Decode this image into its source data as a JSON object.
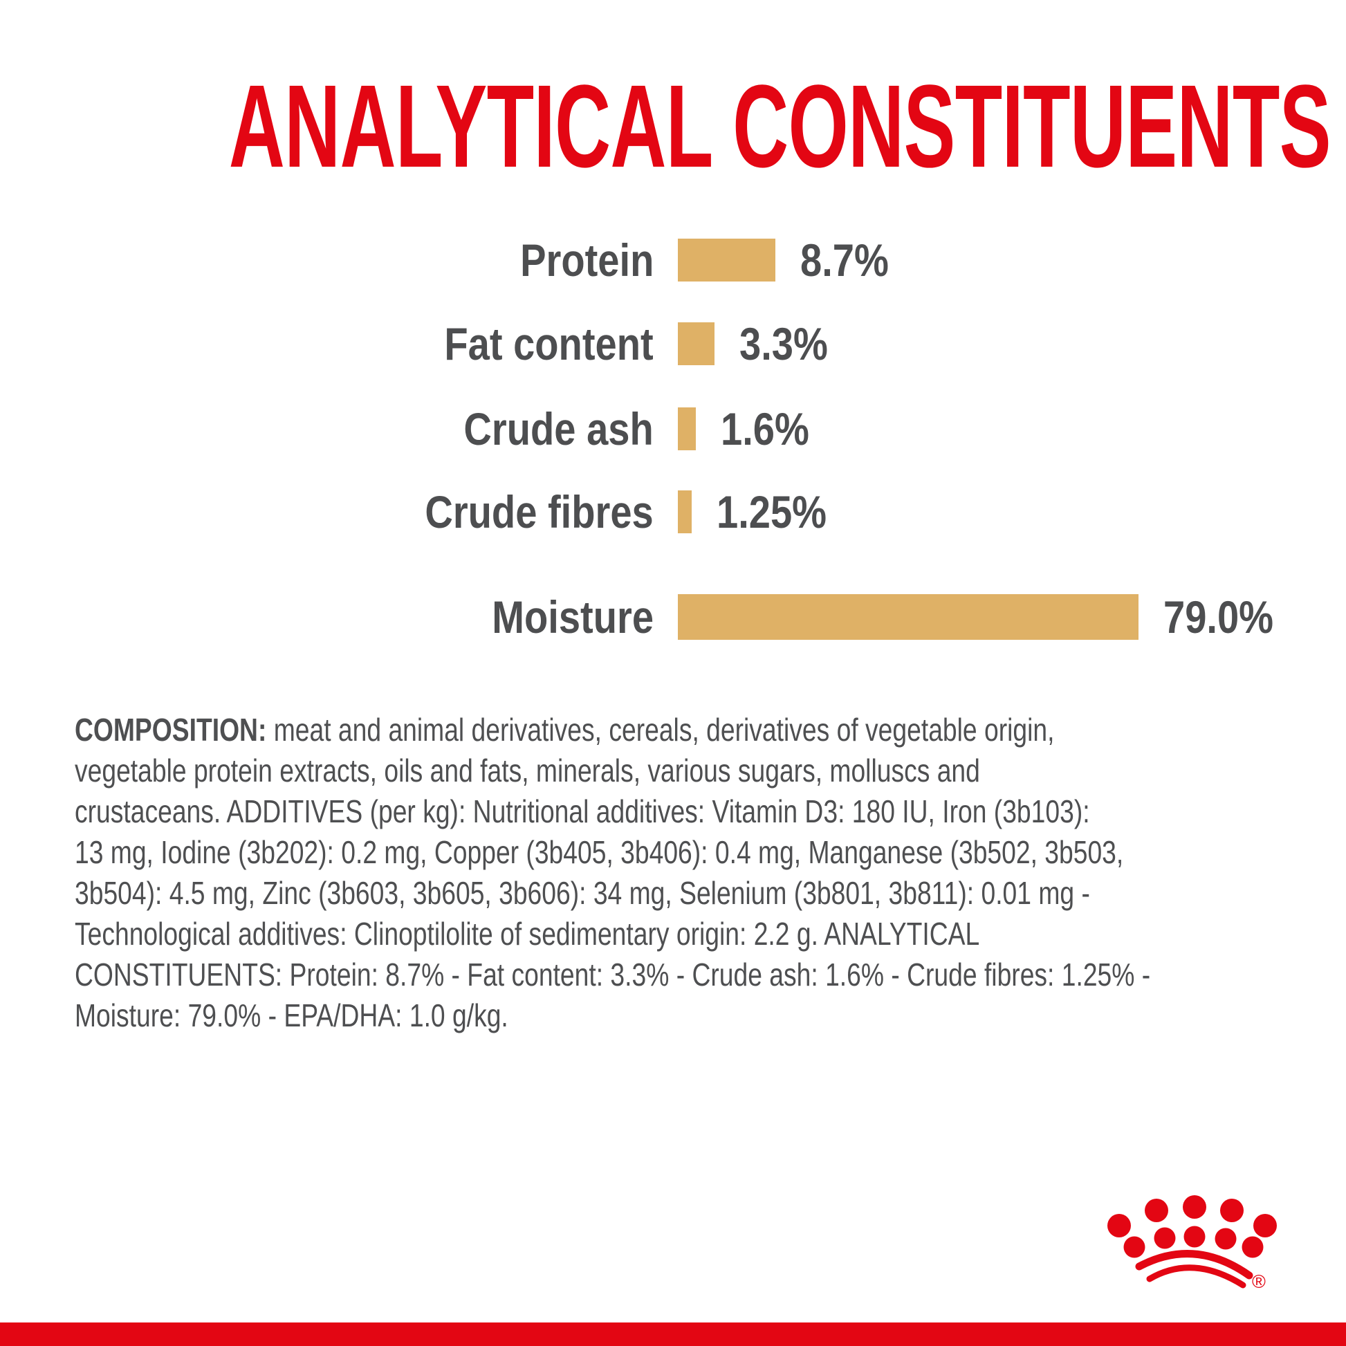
{
  "page": {
    "background": "#ffffff",
    "accent_red": "#e30613",
    "bar_color": "#dfb166",
    "text_gray": "#4d4e50"
  },
  "title": "ANALYTICAL CONSTITUENTS",
  "chart_data": {
    "type": "bar",
    "orientation": "horizontal",
    "categories": [
      "Protein",
      "Fat content",
      "Crude ash",
      "Crude fibres",
      "Moisture"
    ],
    "values": [
      8.7,
      3.3,
      1.6,
      1.25,
      79.0
    ],
    "value_labels": [
      "8.7%",
      "3.3%",
      "1.6%",
      "1.25%",
      "79.0%"
    ],
    "title": "ANALYTICAL CONSTITUENTS",
    "xlabel": "",
    "ylabel": "",
    "bar_color": "#dfb166",
    "grid": false,
    "legend": false,
    "value_label_position": "right-of-bar",
    "moisture_bar_truncated": true
  },
  "composition": {
    "lead": "COMPOSITION:",
    "lines": [
      " meat and animal derivatives, cereals, derivatives of vegetable origin,",
      "vegetable protein extracts, oils and fats, minerals, various sugars, molluscs and",
      "crustaceans. ADDITIVES (per kg): Nutritional additives: Vitamin D3: 180 IU, Iron (3b103):",
      "13 mg, Iodine (3b202): 0.2 mg, Copper (3b405, 3b406): 0.4 mg, Manganese (3b502, 3b503,",
      "3b504): 4.5 mg, Zinc (3b603, 3b605, 3b606): 34 mg, Selenium (3b801, 3b811): 0.01 mg -",
      "Technological additives: Clinoptilolite of sedimentary origin: 2.2 g. ANALYTICAL",
      "CONSTITUENTS: Protein: 8.7% - Fat content: 3.3% - Crude ash: 1.6% - Crude fibres: 1.25% -",
      "Moisture: 79.0% - EPA/DHA: 1.0 g/kg."
    ]
  },
  "logo": {
    "name": "royal-canin-crown",
    "registered_mark": "®",
    "color": "#e30613"
  }
}
